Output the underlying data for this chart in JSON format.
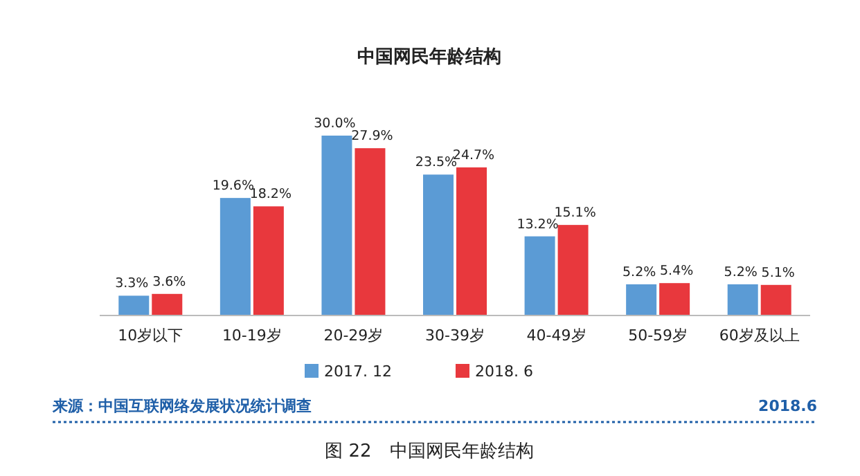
{
  "chart_data": {
    "type": "bar",
    "title": "中国网民年龄结构",
    "categories": [
      "10岁以下",
      "10-19岁",
      "20-29岁",
      "30-39岁",
      "40-49岁",
      "50-59岁",
      "60岁及以上"
    ],
    "series": [
      {
        "name": "2017. 12",
        "color": "#5b9bd5",
        "values": [
          3.3,
          19.6,
          30.0,
          23.5,
          13.2,
          5.2,
          5.2
        ],
        "value_labels": [
          "3.3%",
          "19.6%",
          "30.0%",
          "23.5%",
          "13.2%",
          "5.2%",
          "5.2%"
        ]
      },
      {
        "name": "2018. 6",
        "color": "#e8383d",
        "values": [
          3.6,
          18.2,
          27.9,
          24.7,
          15.1,
          5.4,
          5.1
        ],
        "value_labels": [
          "3.6%",
          "18.2%",
          "27.9%",
          "24.7%",
          "15.1%",
          "5.4%",
          "5.1%"
        ]
      }
    ],
    "legend": "bottom",
    "annotations": [
      "来源：中国互联网络发展状况统计调查",
      "2018.6",
      "图 22　中国网民年龄结构"
    ]
  }
}
